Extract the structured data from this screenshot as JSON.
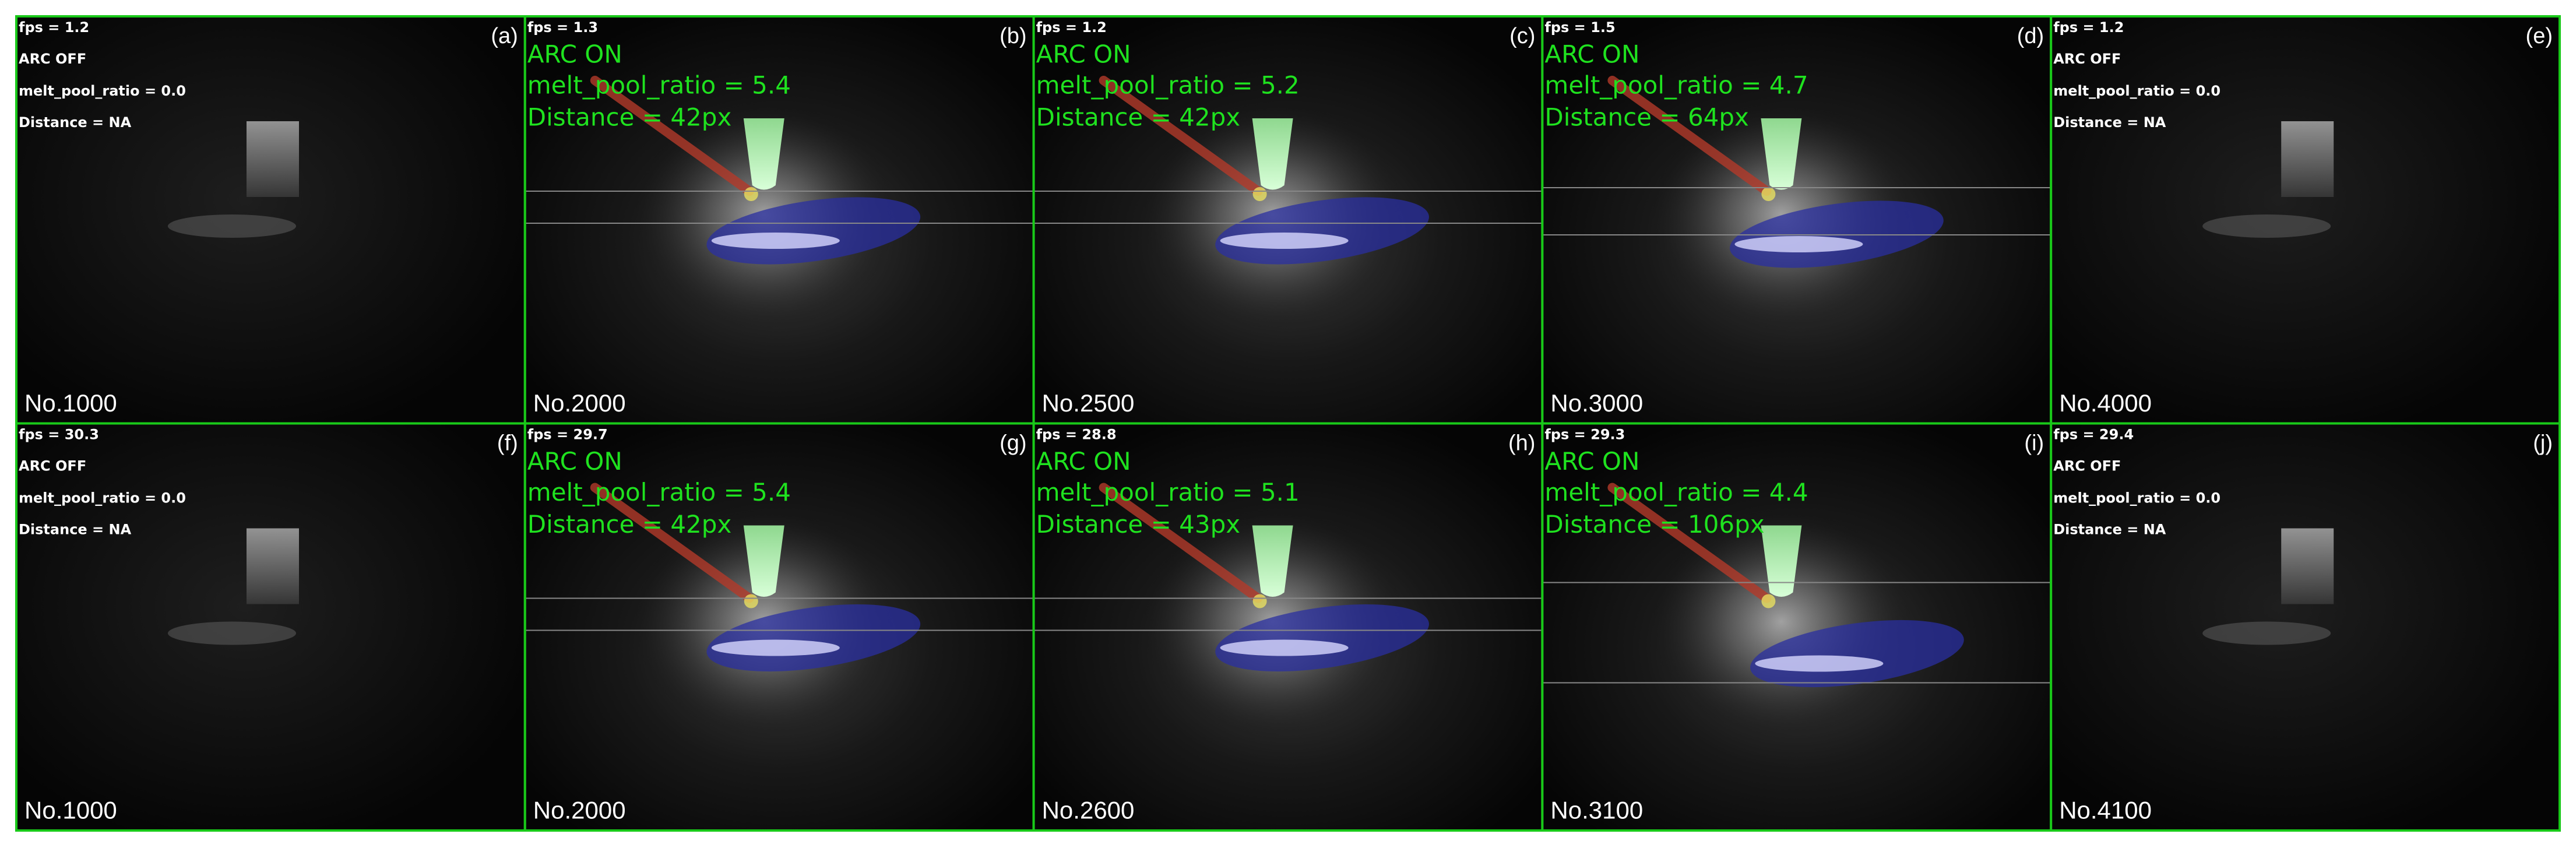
{
  "panels": [
    {
      "tag": "(a)",
      "fps": "fps = 1.2",
      "arc": "ARC OFF",
      "ratio": "melt_pool_ratio = 0.0",
      "distance": "Distance = NA",
      "frame": "No.1000"
    },
    {
      "tag": "(b)",
      "fps": "fps = 1.3",
      "arc": "ARC ON",
      "ratio": "melt_pool_ratio = 5.4",
      "distance": "Distance = 42px",
      "frame": "No.2000"
    },
    {
      "tag": "(c)",
      "fps": "fps = 1.2",
      "arc": "ARC ON",
      "ratio": "melt_pool_ratio = 5.2",
      "distance": "Distance = 42px",
      "frame": "No.2500"
    },
    {
      "tag": "(d)",
      "fps": "fps = 1.5",
      "arc": "ARC ON",
      "ratio": "melt_pool_ratio = 4.7",
      "distance": "Distance = 64px",
      "frame": "No.3000"
    },
    {
      "tag": "(e)",
      "fps": "fps = 1.2",
      "arc": "ARC OFF",
      "ratio": "melt_pool_ratio = 0.0",
      "distance": "Distance = NA",
      "frame": "No.4000"
    },
    {
      "tag": "(f)",
      "fps": "fps = 30.3",
      "arc": "ARC OFF",
      "ratio": "melt_pool_ratio = 0.0",
      "distance": "Distance = NA",
      "frame": "No.1000"
    },
    {
      "tag": "(g)",
      "fps": "fps = 29.7",
      "arc": "ARC ON",
      "ratio": "melt_pool_ratio = 5.4",
      "distance": "Distance = 42px",
      "frame": "No.2000"
    },
    {
      "tag": "(h)",
      "fps": "fps = 28.8",
      "arc": "ARC ON",
      "ratio": "melt_pool_ratio = 5.1",
      "distance": "Distance = 43px",
      "frame": "No.2600"
    },
    {
      "tag": "(i)",
      "fps": "fps = 29.3",
      "arc": "ARC ON",
      "ratio": "melt_pool_ratio = 4.4",
      "distance": "Distance = 106px",
      "frame": "No.3100"
    },
    {
      "tag": "(j)",
      "fps": "fps = 29.4",
      "arc": "ARC OFF",
      "ratio": "melt_pool_ratio = 0.0",
      "distance": "Distance = NA",
      "frame": "No.4100"
    }
  ]
}
